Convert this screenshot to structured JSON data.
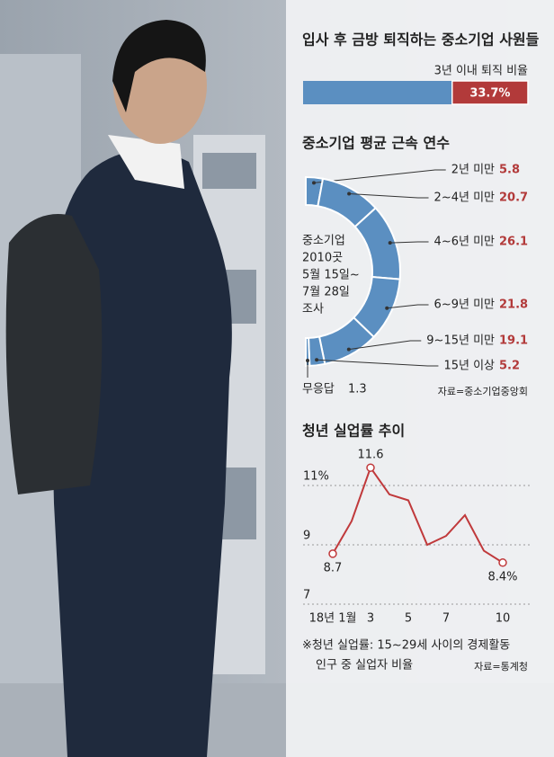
{
  "chart_data": [
    {
      "type": "bar",
      "title": "입사 후 금방 퇴직하는 중소기업 사원들",
      "subtitle": "3년 이내 퇴직 비율",
      "values": [
        33.7
      ],
      "value_labels": [
        "33.7%"
      ],
      "xlim": [
        0,
        100
      ],
      "color": "#b23a3a",
      "track_color": "#5b8fc1"
    },
    {
      "type": "pie",
      "title": "중소기업 평균 근속 연수",
      "note": [
        "중소기업",
        "2010곳",
        "5월 15일~",
        "7월 28일",
        "조사"
      ],
      "categories": [
        "2년 미만",
        "2~4년 미만",
        "4~6년 미만",
        "6~9년 미만",
        "9~15년 미만",
        "15년 이상",
        "무응답"
      ],
      "values": [
        5.8,
        20.7,
        26.1,
        21.8,
        19.1,
        5.2,
        1.3
      ],
      "color": "#5b8fc1",
      "label_color": "#b23a3a",
      "source": "자료=중소기업중앙회"
    },
    {
      "type": "line",
      "title": "청년 실업률 추이",
      "categories": [
        "18년 1월",
        null,
        "3",
        null,
        "5",
        null,
        "7",
        null,
        null,
        "10"
      ],
      "values": [
        8.7,
        9.8,
        11.6,
        10.7,
        10.5,
        9.0,
        9.3,
        10.0,
        8.8,
        8.4
      ],
      "value_labels": [
        "8.7",
        null,
        "11.6",
        null,
        null,
        null,
        null,
        null,
        null,
        "8.4%"
      ],
      "ylim": [
        7,
        12
      ],
      "yticks": [
        {
          "value": 11,
          "label": "11%"
        },
        9,
        7
      ],
      "grid": true,
      "color": "#c0393b",
      "footnote": [
        "※청년 실업률: 15~29세 사이의 경제활동",
        "인구 중 실업자 비율"
      ],
      "source": "자료=통계청"
    }
  ]
}
